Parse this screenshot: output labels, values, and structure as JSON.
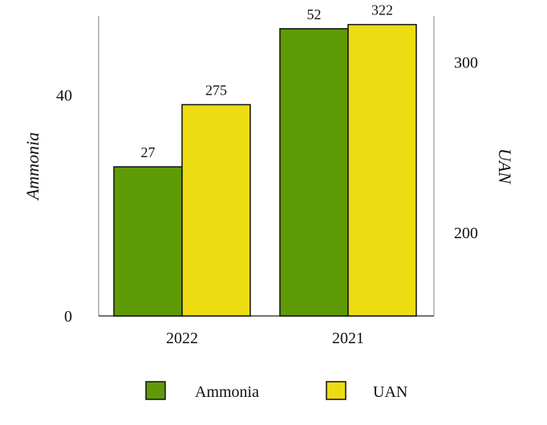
{
  "chart_data": {
    "type": "bar",
    "categories": [
      "2022",
      "2021"
    ],
    "series": [
      {
        "name": "Ammonia",
        "axis": "left",
        "values": [
          27,
          52
        ],
        "color": "#5f9b07"
      },
      {
        "name": "UAN",
        "axis": "right",
        "values": [
          275,
          322
        ],
        "color": "#eddc12"
      }
    ],
    "y_left": {
      "label": "Ammonia",
      "ticks": [
        0,
        40
      ],
      "ylim": [
        0,
        54.3
      ]
    },
    "y_right": {
      "label": "UAN",
      "ticks": [
        200,
        300
      ],
      "ylim": [
        151,
        327
      ]
    },
    "legend": {
      "placement": "bottom"
    },
    "grid": false
  }
}
